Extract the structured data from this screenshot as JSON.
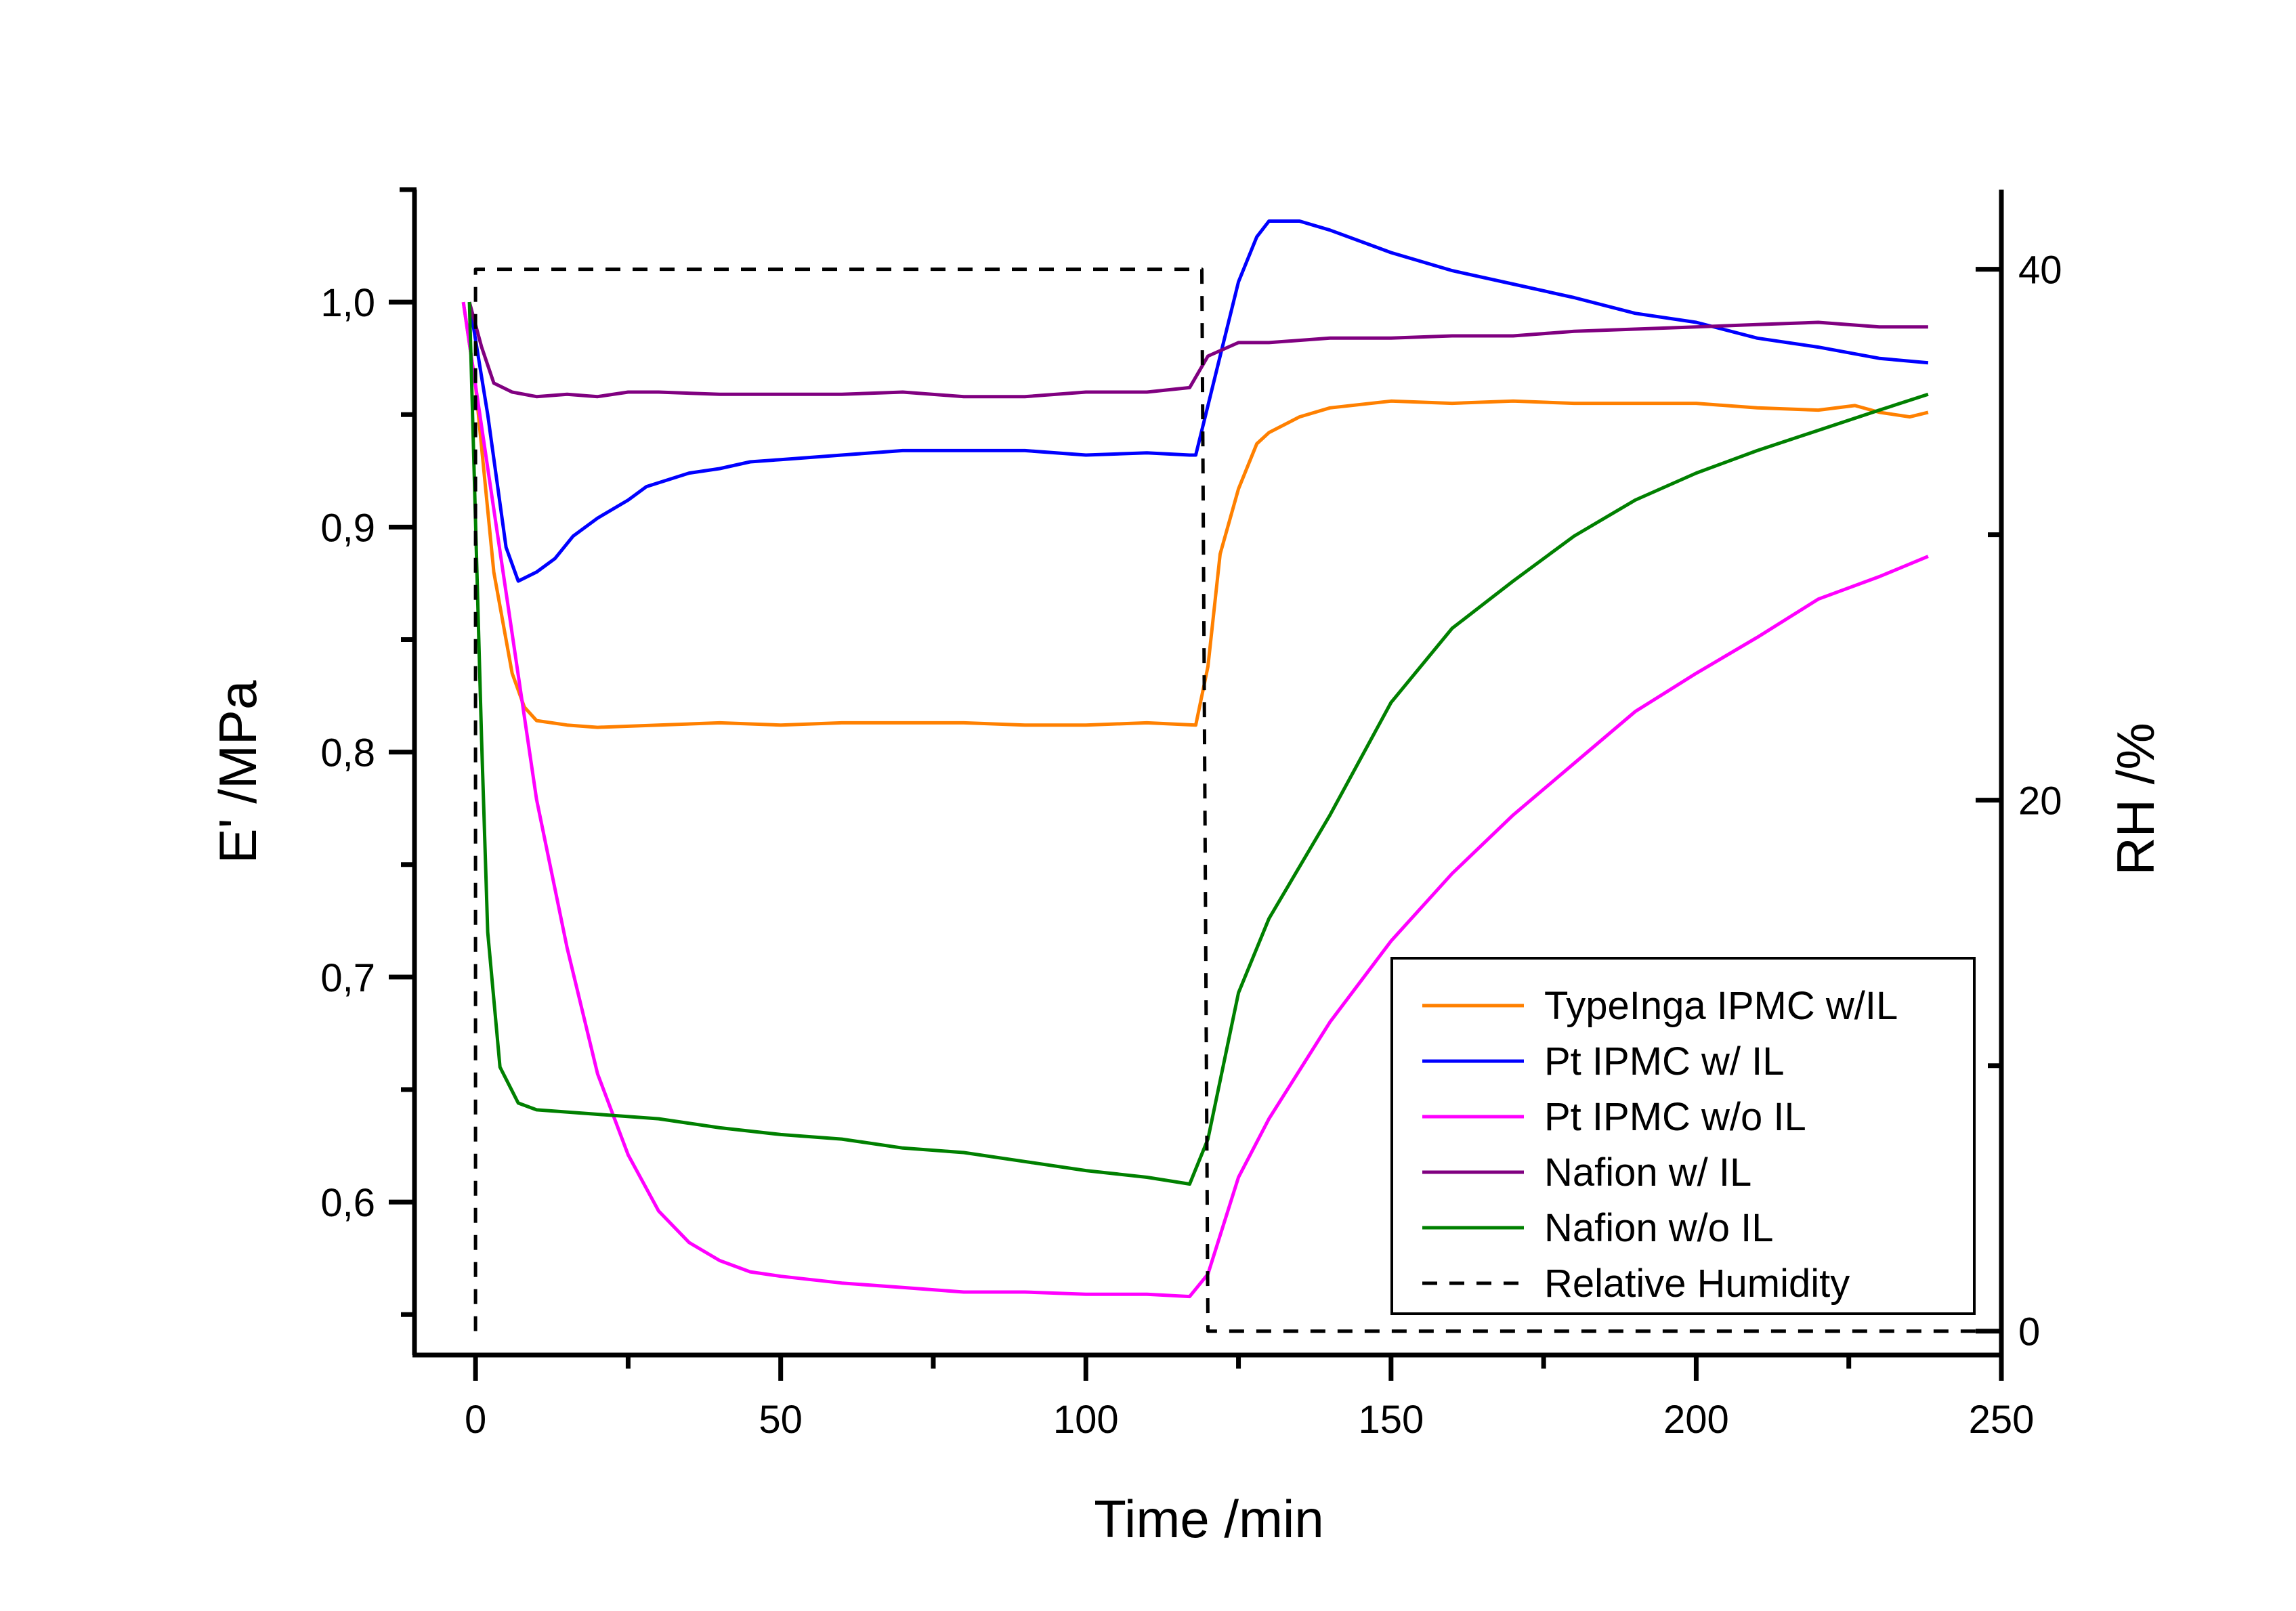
{
  "chart_data": {
    "type": "line",
    "title": "",
    "xlabel": "Time /min",
    "ylabel": "E' /MPa",
    "y2label": "RH /%",
    "xlim": [
      -10,
      250
    ],
    "ylim": [
      0.532,
      1.05
    ],
    "y2lim": [
      -0.9,
      43.0
    ],
    "xticks": [
      0,
      50,
      100,
      150,
      200,
      250
    ],
    "xtick_labels": [
      "0",
      "50",
      "100",
      "150",
      "200",
      "250"
    ],
    "yticks": [
      0.6,
      0.7,
      0.8,
      0.9,
      1.0
    ],
    "ytick_labels": [
      "0,6",
      "0,7",
      "0,8",
      "0,9",
      "1,0"
    ],
    "y2ticks": [
      0,
      20,
      40
    ],
    "y2tick_labels": [
      "0",
      "20",
      "40"
    ],
    "grid": false,
    "legend_position": "bottom-right",
    "series": [
      {
        "name": "TypeInga IPMC w/IL",
        "color": "#ff8000",
        "axis": "left",
        "dash": false,
        "x": [
          -2,
          0,
          3,
          6,
          8,
          10,
          15,
          20,
          30,
          40,
          50,
          60,
          70,
          80,
          90,
          100,
          110,
          118,
          120,
          122,
          125,
          128,
          130,
          135,
          140,
          150,
          160,
          170,
          180,
          190,
          200,
          210,
          220,
          226,
          230,
          235,
          238
        ],
        "y": [
          1.0,
          0.963,
          0.88,
          0.835,
          0.82,
          0.814,
          0.812,
          0.811,
          0.812,
          0.813,
          0.812,
          0.813,
          0.813,
          0.813,
          0.812,
          0.812,
          0.813,
          0.812,
          0.838,
          0.888,
          0.917,
          0.937,
          0.942,
          0.949,
          0.953,
          0.956,
          0.955,
          0.956,
          0.955,
          0.955,
          0.955,
          0.953,
          0.952,
          0.954,
          0.951,
          0.949,
          0.951
        ]
      },
      {
        "name": "Pt IPMC w/ IL",
        "color": "#0000ff",
        "axis": "left",
        "dash": false,
        "x": [
          -1,
          2,
          5,
          7,
          10,
          13,
          16,
          20,
          25,
          28,
          35,
          40,
          45,
          50,
          60,
          70,
          80,
          90,
          100,
          110,
          117,
          118,
          122,
          125,
          128,
          130,
          135,
          140,
          150,
          160,
          170,
          180,
          190,
          200,
          210,
          220,
          230,
          238
        ],
        "y": [
          1.0,
          0.95,
          0.891,
          0.876,
          0.88,
          0.886,
          0.896,
          0.904,
          0.912,
          0.918,
          0.924,
          0.926,
          0.929,
          0.93,
          0.932,
          0.934,
          0.934,
          0.934,
          0.932,
          0.933,
          0.932,
          0.932,
          0.976,
          1.009,
          1.029,
          1.036,
          1.036,
          1.032,
          1.022,
          1.014,
          1.008,
          1.002,
          0.995,
          0.991,
          0.984,
          0.98,
          0.975,
          0.973
        ]
      },
      {
        "name": "Pt IPMC w/o IL",
        "color": "#ff00ff",
        "axis": "left",
        "dash": false,
        "x": [
          -2,
          0,
          5,
          10,
          15,
          20,
          25,
          30,
          35,
          40,
          45,
          50,
          60,
          70,
          80,
          90,
          100,
          110,
          117,
          120,
          125,
          130,
          140,
          150,
          160,
          170,
          180,
          190,
          200,
          210,
          220,
          230,
          238
        ],
        "y": [
          1.0,
          0.963,
          0.871,
          0.779,
          0.713,
          0.657,
          0.621,
          0.596,
          0.582,
          0.574,
          0.569,
          0.567,
          0.564,
          0.562,
          0.56,
          0.56,
          0.559,
          0.559,
          0.558,
          0.568,
          0.611,
          0.637,
          0.68,
          0.716,
          0.746,
          0.772,
          0.795,
          0.818,
          0.835,
          0.851,
          0.868,
          0.878,
          0.887
        ]
      },
      {
        "name": "Nafion w/ IL",
        "color": "#800080",
        "axis": "left",
        "dash": false,
        "x": [
          -1,
          1,
          3,
          6,
          10,
          15,
          20,
          25,
          30,
          40,
          50,
          60,
          70,
          80,
          90,
          100,
          110,
          117,
          120,
          125,
          130,
          140,
          150,
          160,
          170,
          180,
          190,
          200,
          210,
          220,
          230,
          238
        ],
        "y": [
          1.0,
          0.98,
          0.964,
          0.96,
          0.958,
          0.959,
          0.958,
          0.96,
          0.96,
          0.959,
          0.959,
          0.959,
          0.96,
          0.958,
          0.958,
          0.96,
          0.96,
          0.962,
          0.976,
          0.982,
          0.982,
          0.984,
          0.984,
          0.985,
          0.985,
          0.987,
          0.988,
          0.989,
          0.99,
          0.991,
          0.989,
          0.989
        ]
      },
      {
        "name": "Nafion w/o IL",
        "color": "#008000",
        "axis": "left",
        "dash": false,
        "x": [
          -1,
          1,
          2,
          4,
          7,
          10,
          20,
          30,
          40,
          50,
          60,
          70,
          80,
          90,
          100,
          110,
          117,
          120,
          125,
          130,
          140,
          150,
          160,
          170,
          180,
          190,
          200,
          210,
          220,
          230,
          238
        ],
        "y": [
          1.0,
          0.805,
          0.72,
          0.66,
          0.644,
          0.641,
          0.639,
          0.637,
          0.633,
          0.63,
          0.628,
          0.624,
          0.622,
          0.618,
          0.614,
          0.611,
          0.608,
          0.628,
          0.693,
          0.726,
          0.772,
          0.822,
          0.855,
          0.876,
          0.896,
          0.912,
          0.924,
          0.934,
          0.943,
          0.952,
          0.959
        ]
      },
      {
        "name": "Relative Humidity",
        "color": "#000000",
        "axis": "right",
        "dash": true,
        "x": [
          0,
          0,
          119,
          120,
          250
        ],
        "y": [
          0,
          40,
          40,
          0,
          0
        ]
      }
    ]
  }
}
